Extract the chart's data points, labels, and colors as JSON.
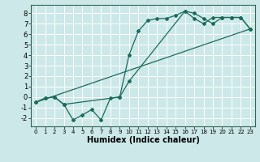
{
  "xlabel": "Humidex (Indice chaleur)",
  "bg_color": "#cce8e8",
  "grid_color": "#ffffff",
  "line_color": "#1a6b5a",
  "xlim": [
    -0.5,
    23.5
  ],
  "ylim": [
    -2.8,
    8.8
  ],
  "xticks": [
    0,
    1,
    2,
    3,
    4,
    5,
    6,
    7,
    8,
    9,
    10,
    11,
    12,
    13,
    14,
    15,
    16,
    17,
    18,
    19,
    20,
    21,
    22,
    23
  ],
  "yticks": [
    -2,
    -1,
    0,
    1,
    2,
    3,
    4,
    5,
    6,
    7,
    8
  ],
  "series1_x": [
    0,
    1,
    2,
    3,
    4,
    5,
    6,
    7,
    8,
    9,
    10,
    11,
    12,
    13,
    14,
    15,
    16,
    17,
    18,
    19,
    20,
    21,
    22,
    23
  ],
  "series1_y": [
    -0.5,
    -0.1,
    0.0,
    -0.7,
    -2.2,
    -1.7,
    -1.2,
    -2.2,
    -0.1,
    0.0,
    4.0,
    6.3,
    7.3,
    7.5,
    7.5,
    7.8,
    8.2,
    8.0,
    7.5,
    7.0,
    7.6,
    7.6,
    7.6,
    6.5
  ],
  "series2_x": [
    0,
    23
  ],
  "series2_y": [
    -0.5,
    6.5
  ],
  "series3_x": [
    0,
    1,
    2,
    3,
    9,
    10,
    16,
    17,
    18,
    19,
    20,
    21,
    22,
    23
  ],
  "series3_y": [
    -0.5,
    -0.1,
    0.0,
    -0.7,
    0.0,
    1.5,
    8.2,
    7.5,
    7.0,
    7.6,
    7.6,
    7.6,
    7.6,
    6.5
  ]
}
